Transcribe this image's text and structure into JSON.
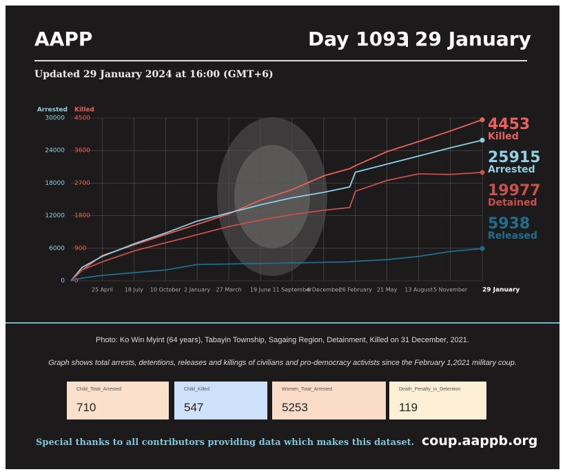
{
  "header": {
    "title": "AAPP",
    "day": "Day 1093",
    "date": "29 January",
    "updated": "Updated 29 January 2024 at 16:00 (GMT+6)"
  },
  "chart_data": {
    "type": "line",
    "ylabel": "Arrested",
    "y2label": "Killed",
    "x": [
      0,
      30,
      83,
      167,
      251,
      335,
      419,
      503,
      587,
      671,
      740,
      755,
      839,
      923,
      1007,
      1092
    ],
    "xlim": [
      0,
      1092
    ],
    "xticks": [
      {
        "value": 83,
        "label": "25 April"
      },
      {
        "value": 167,
        "label": "18 July"
      },
      {
        "value": 251,
        "label": "10 October"
      },
      {
        "value": 335,
        "label": "2 January"
      },
      {
        "value": 419,
        "label": "27 March"
      },
      {
        "value": 503,
        "label": "19 June"
      },
      {
        "value": 587,
        "label": "11 September"
      },
      {
        "value": 671,
        "label": "4 December"
      },
      {
        "value": 755,
        "label": "26 February"
      },
      {
        "value": 839,
        "label": "21 May"
      },
      {
        "value": 923,
        "label": "13 August"
      },
      {
        "value": 1007,
        "label": "5 November"
      },
      {
        "value": 1092,
        "label": "29 January"
      }
    ],
    "ylim": [
      0,
      30000
    ],
    "yticks": [
      0,
      6000,
      12000,
      18000,
      24000,
      30000
    ],
    "y2lim": [
      0,
      4500
    ],
    "y2ticks": [
      0,
      900,
      1800,
      2700,
      3600,
      4500
    ],
    "grid": true,
    "series": [
      {
        "name": "Killed",
        "color": "#e8625b",
        "axis": "y2",
        "values": [
          0,
          300,
          700,
          990,
          1280,
          1560,
          1850,
          2230,
          2520,
          2900,
          3100,
          3180,
          3570,
          3850,
          4140,
          4453
        ]
      },
      {
        "name": "Arrested",
        "color": "#8fd0e2",
        "values": [
          0,
          2500,
          4500,
          6800,
          8800,
          11000,
          12500,
          14000,
          15300,
          16300,
          17300,
          20000,
          21500,
          23000,
          24500,
          25915
        ]
      },
      {
        "name": "Detained",
        "color": "#c9504b",
        "values": [
          0,
          2000,
          3500,
          5500,
          7000,
          8500,
          10000,
          11200,
          12200,
          13000,
          13500,
          16500,
          18500,
          19700,
          19600,
          19977
        ]
      },
      {
        "name": "Released",
        "color": "#1f7090",
        "values": [
          0,
          500,
          1000,
          1500,
          2000,
          3000,
          3100,
          3200,
          3300,
          3400,
          3500,
          3600,
          3900,
          4500,
          5400,
          5938
        ]
      }
    ]
  },
  "caption": {
    "photo": "Photo: Ko Win Myint (64 years), Tabayin Township, Sagaing Region, Detainment, Killed on 31 December, 2021.",
    "description": "Graph shows total arrests, detentions, releases and killings of civilians and pro-democracy activists since the February 1,2021 military coup."
  },
  "stats": [
    {
      "label": "Child_Total_Arrested",
      "value": 710
    },
    {
      "label": "Child_Killed",
      "value": 547
    },
    {
      "label": "Women_Total_Arrested",
      "value": 5253
    },
    {
      "label": "Death_Penalty_in_Detention",
      "value": 119
    }
  ],
  "footer": {
    "thanks": "Special thanks to all contributors providing data which makes this dataset.",
    "url": "coup.aappb.org"
  }
}
